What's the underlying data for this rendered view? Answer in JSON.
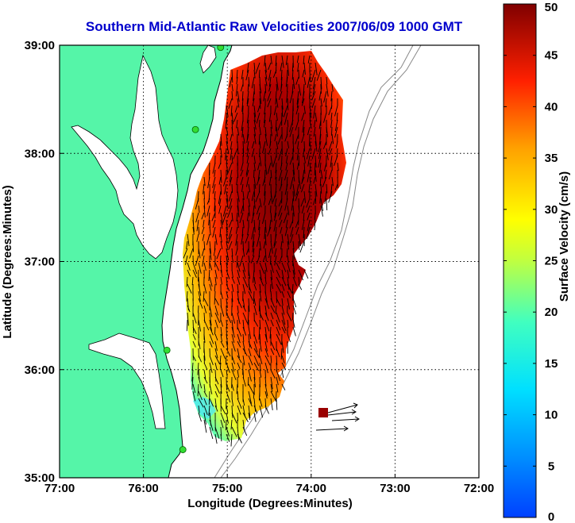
{
  "chart_data": {
    "type": "heatmap",
    "title": "Southern Mid-Atlantic Raw Velocities 2007/06/09 1000 GMT",
    "xlabel": "Longitude (Degrees:Minutes)",
    "ylabel": "Latitude (Degrees:Minutes)",
    "x_ticks": [
      "77:00",
      "76:00",
      "75:00",
      "74:00",
      "73:00",
      "72:00"
    ],
    "y_ticks": [
      "39:00",
      "38:00",
      "37:00",
      "36:00",
      "35:00"
    ],
    "xlim": [
      -77,
      -72
    ],
    "ylim": [
      35,
      39
    ],
    "grid": true,
    "colorbar": {
      "label": "Surface Velocity (cm/s)",
      "range": [
        0,
        50
      ],
      "ticks": [
        "50",
        "45",
        "40",
        "35",
        "30",
        "25",
        "20",
        "15",
        "10",
        "5",
        "0"
      ],
      "colormap": "jet"
    },
    "fields": {
      "velocity_range_cm_s": [
        0,
        50
      ],
      "dominant_flow": "southward",
      "outlier_cell": {
        "lon": -73.85,
        "lat": 35.6,
        "speed": 48
      }
    },
    "stations": [
      {
        "lon": -75.08,
        "lat": 38.98
      },
      {
        "lon": -75.38,
        "lat": 38.22
      },
      {
        "lon": -75.72,
        "lat": 36.18
      },
      {
        "lon": -75.53,
        "lat": 35.26
      }
    ],
    "colors": {
      "land": "#55f5a8",
      "coast": "#000000",
      "title": "#0000cc",
      "arrow": "#000000",
      "bathymetry": "#888888"
    }
  }
}
